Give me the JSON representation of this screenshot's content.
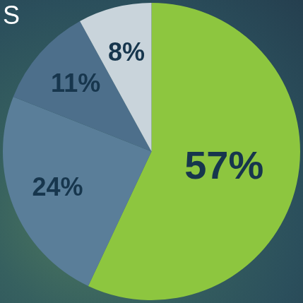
{
  "chart_data": {
    "type": "pie",
    "title": "S",
    "categories": [
      null,
      null,
      null,
      null
    ],
    "values": [
      57,
      24,
      11,
      8
    ],
    "value_labels": [
      "57%",
      "24%",
      "11%",
      "8%"
    ],
    "colors": [
      "#8dc63f",
      "#5a7e99",
      "#4d6f8b",
      "#c9d4db"
    ],
    "data_labels": true
  }
}
